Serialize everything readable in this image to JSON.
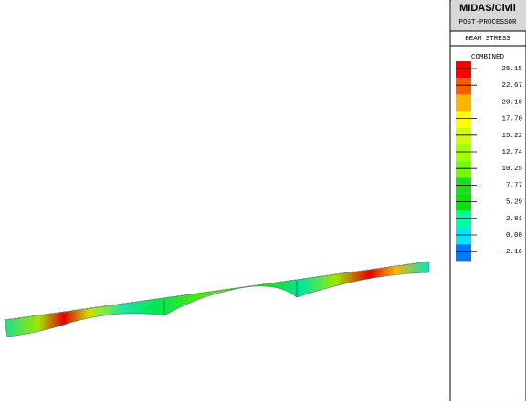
{
  "header": {
    "title": "MIDAS/Civil",
    "subtitle": "POST-PROCESSOR",
    "result": "BEAM STRESS",
    "component": "COMBINED"
  },
  "legend": {
    "labels": [
      "25.15",
      "22.67",
      "20.18",
      "17.70",
      "15.22",
      "12.74",
      "10.25",
      "7.77",
      "5.29",
      "2.81",
      "0.00",
      "-2.16"
    ],
    "colors": [
      "#ff0000",
      "#ff5a00",
      "#ffb400",
      "#ffff00",
      "#d2ff00",
      "#a0ff00",
      "#6eff00",
      "#1edc1e",
      "#00e600",
      "#00ffa0",
      "#00e6ff",
      "#0078ff"
    ]
  }
}
